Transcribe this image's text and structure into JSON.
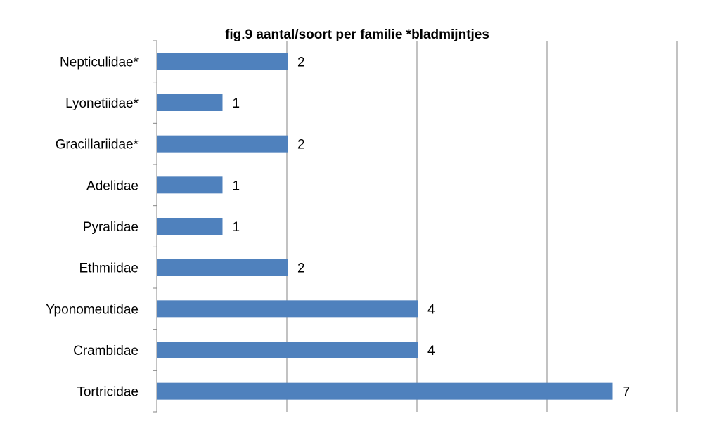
{
  "chart_data": {
    "type": "bar",
    "orientation": "horizontal",
    "title": "fig.9 aantal/soort  per familie *bladmijntjes",
    "categories": [
      "Nepticulidae*",
      "Lyonetiidae*",
      "Gracillariidae*",
      "Adelidae",
      "Pyralidae",
      "Ethmiidae",
      "Yponomeutidae",
      "Crambidae",
      "Tortricidae"
    ],
    "values": [
      2,
      1,
      2,
      1,
      1,
      2,
      4,
      4,
      7
    ],
    "xlim": [
      0,
      8
    ],
    "gridlines": true,
    "data_labels": true,
    "legend": "none",
    "bar_color": "#4f81bd"
  }
}
